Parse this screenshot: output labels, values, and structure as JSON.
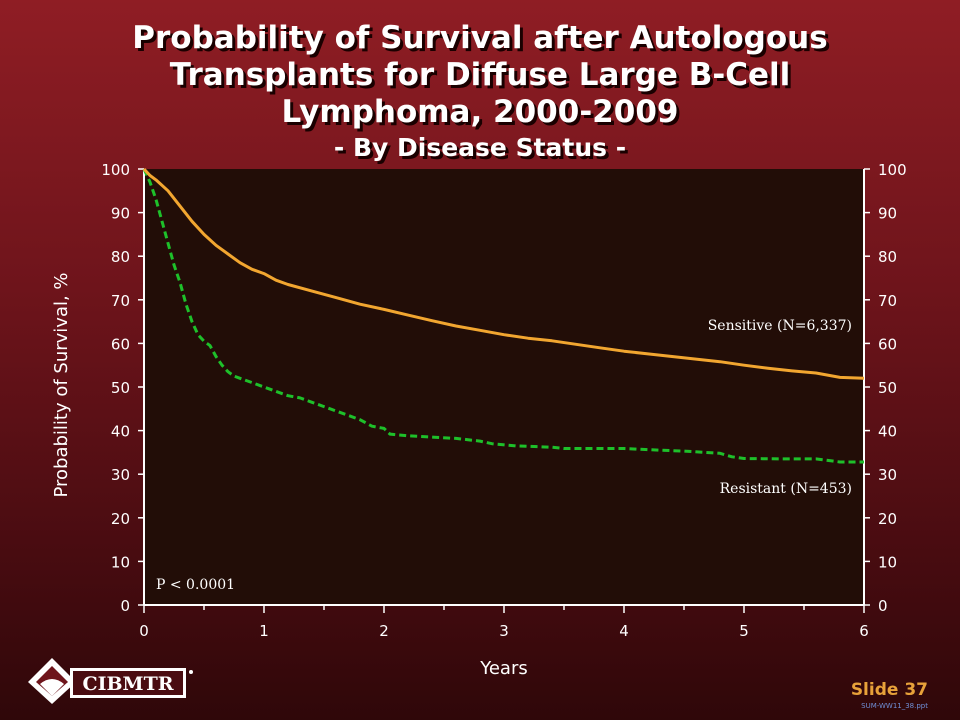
{
  "title": {
    "main": "Probability of Survival after Autologous Transplants for Diffuse Large B-Cell Lymphoma, 2000-2009",
    "sub": "- By Disease Status -"
  },
  "colors": {
    "plot_bg": "#220d07",
    "sensitive": "#f2a630",
    "resistant": "#1ec02a",
    "axis_text": "#ffffff",
    "slide_number": "#e8a23a"
  },
  "footer": {
    "logo_text": "CIBMTR",
    "slide_number": "Slide 37",
    "file_code": "SUM-WW11_38.ppt"
  },
  "chart_data": {
    "type": "line",
    "xlabel": "Years",
    "ylabel": "Probability of Survival, %",
    "xlim": [
      0,
      6
    ],
    "ylim": [
      0,
      100
    ],
    "xticks": [
      0,
      1,
      2,
      3,
      4,
      5,
      6
    ],
    "yticks": [
      0,
      10,
      20,
      30,
      40,
      50,
      60,
      70,
      80,
      90,
      100
    ],
    "y_axis_right": true,
    "annotation": "P < 0.0001",
    "series": [
      {
        "name": "Sensitive (N=6,337)",
        "style": "solid",
        "x": [
          0,
          0.05,
          0.1,
          0.2,
          0.3,
          0.4,
          0.5,
          0.6,
          0.7,
          0.8,
          0.9,
          1.0,
          1.1,
          1.2,
          1.4,
          1.6,
          1.8,
          2.0,
          2.2,
          2.4,
          2.6,
          2.8,
          3.0,
          3.2,
          3.4,
          3.6,
          3.8,
          4.0,
          4.2,
          4.4,
          4.6,
          4.8,
          5.0,
          5.2,
          5.4,
          5.6,
          5.8,
          6.0
        ],
        "y": [
          100,
          98.5,
          97.5,
          95,
          91.5,
          88,
          85,
          82.5,
          80.5,
          78.5,
          77,
          76,
          74.5,
          73.5,
          72,
          70.5,
          69,
          67.8,
          66.5,
          65.2,
          64,
          63,
          62,
          61.2,
          60.6,
          59.8,
          59,
          58.2,
          57.6,
          57,
          56.4,
          55.8,
          55,
          54.3,
          53.7,
          53.2,
          52.2,
          52
        ]
      },
      {
        "name": "Resistant (N=453)",
        "style": "dashed",
        "x": [
          0,
          0.05,
          0.1,
          0.15,
          0.2,
          0.25,
          0.3,
          0.35,
          0.4,
          0.45,
          0.5,
          0.55,
          0.6,
          0.65,
          0.7,
          0.75,
          0.8,
          0.9,
          1.0,
          1.1,
          1.2,
          1.3,
          1.4,
          1.5,
          1.6,
          1.7,
          1.8,
          1.9,
          2.0,
          2.05,
          2.2,
          2.4,
          2.6,
          2.8,
          2.9,
          3.1,
          3.4,
          3.5,
          4.0,
          4.3,
          4.5,
          4.8,
          4.9,
          5.0,
          5.3,
          5.6,
          5.8,
          6.0
        ],
        "y": [
          100,
          97,
          93,
          88,
          83,
          78,
          74,
          69,
          65,
          62,
          60.5,
          59.5,
          57,
          55,
          53.5,
          52.5,
          52,
          51,
          50,
          49,
          48,
          47.5,
          46.5,
          45.5,
          44.5,
          43.5,
          42.5,
          41,
          40.5,
          39.2,
          38.8,
          38.5,
          38.2,
          37.6,
          37,
          36.5,
          36.2,
          35.9,
          35.9,
          35.5,
          35.3,
          34.8,
          34,
          33.6,
          33.5,
          33.5,
          32.8,
          32.8
        ]
      }
    ]
  }
}
